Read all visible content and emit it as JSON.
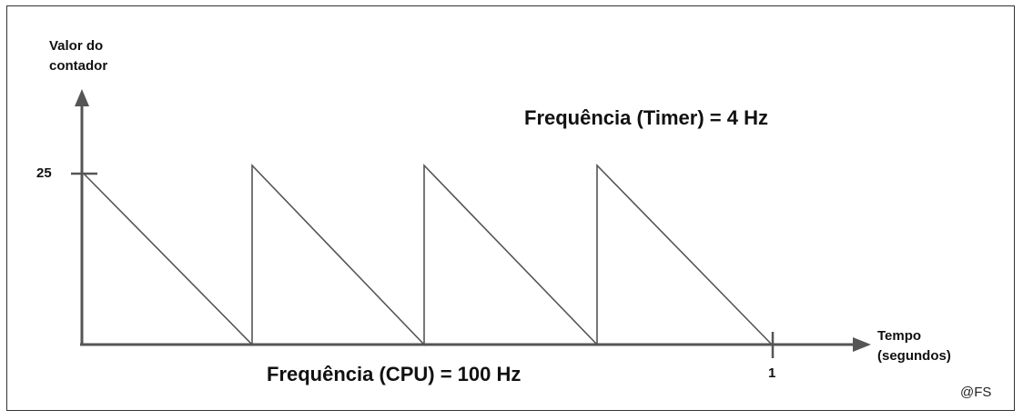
{
  "y_axis_label_line1": "Valor do",
  "y_axis_label_line2": "contador",
  "y_tick_label": "25",
  "x_axis_label_line1": "Tempo",
  "x_axis_label_line2": "(segundos)",
  "x_tick_label": "1",
  "timer_frequency_label": "Frequência (Timer) = 4 Hz",
  "cpu_frequency_label": "Frequência (CPU) = 100 Hz",
  "credit": "@FS",
  "line_color": "#555555",
  "axis_color": "#555555"
}
